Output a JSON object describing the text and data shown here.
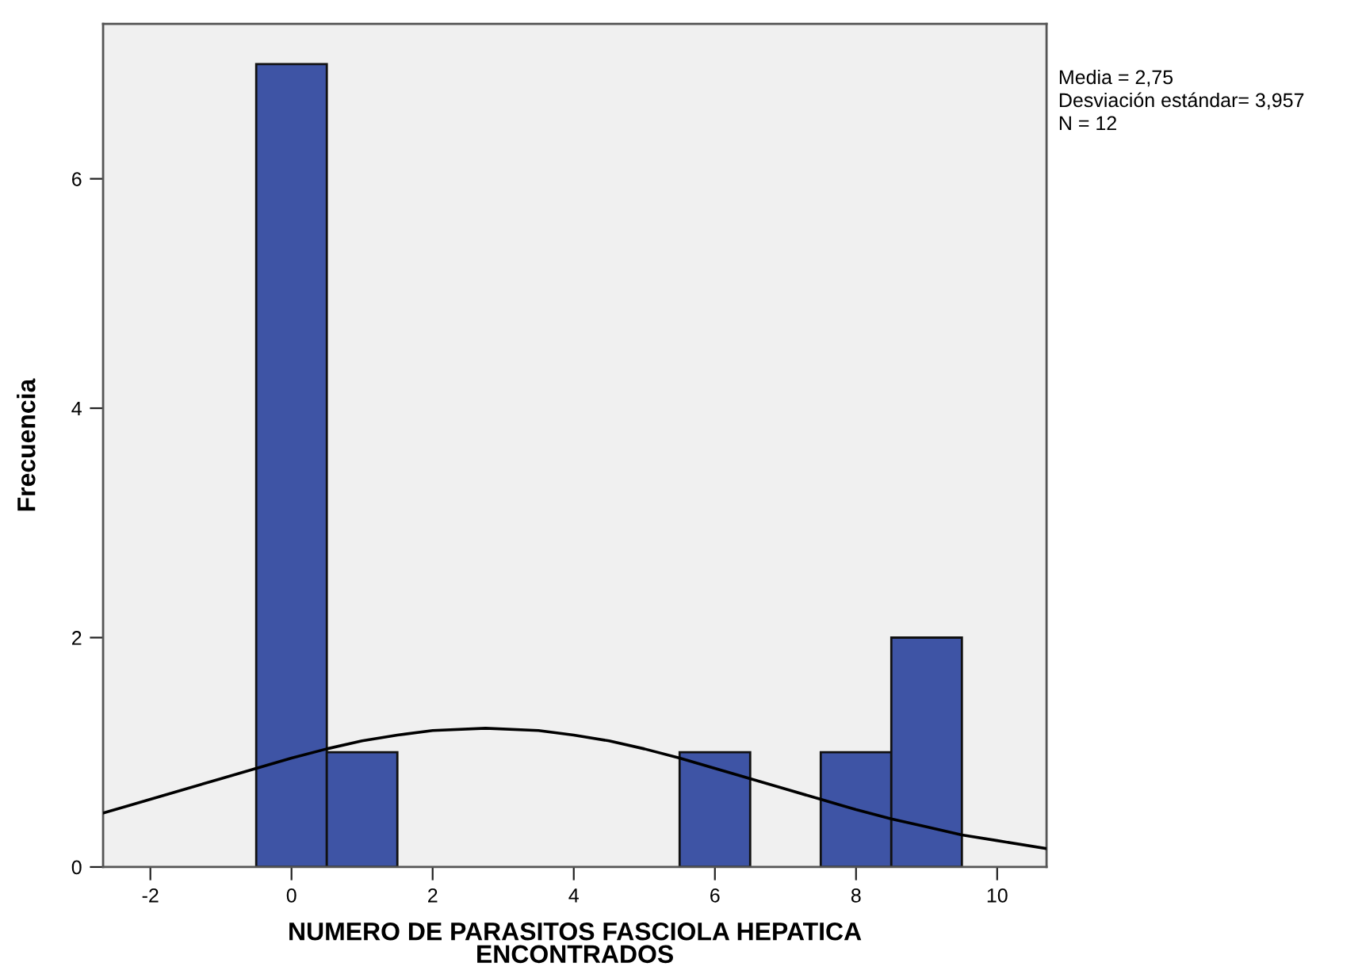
{
  "chart_data": {
    "type": "histogram",
    "xlabel": "NUMERO DE PARASITOS FASCIOLA HEPATICA\nENCONTRADOS",
    "ylabel": "Frecuencia",
    "bins": [
      -0.5,
      0.5,
      1.5,
      2.5,
      3.5,
      4.5,
      5.5,
      6.5,
      7.5,
      8.5,
      9.5
    ],
    "series": [
      {
        "color": "#3e54a5",
        "values": [
          7,
          1,
          0,
          0,
          0,
          0,
          1,
          0,
          1,
          2
        ]
      },
      {
        "type": "line",
        "color": "#000000",
        "x": [
          -2.67,
          -2,
          -1.5,
          -1,
          -0.5,
          0,
          0.5,
          1,
          1.5,
          2,
          2.75,
          3.5,
          4,
          4.5,
          5,
          5.5,
          6,
          6.5,
          7,
          7.5,
          8,
          8.5,
          9,
          9.5,
          10,
          10.7
        ],
        "values": [
          0.47,
          0.59,
          0.68,
          0.77,
          0.86,
          0.95,
          1.03,
          1.1,
          1.15,
          1.19,
          1.21,
          1.19,
          1.15,
          1.1,
          1.03,
          0.95,
          0.86,
          0.77,
          0.68,
          0.59,
          0.5,
          0.42,
          0.35,
          0.28,
          0.23,
          0.16
        ]
      }
    ],
    "xlim": [
      -2.67,
      10.7
    ],
    "ylim": [
      0,
      7.35
    ],
    "xticks": [
      -2,
      0,
      2,
      4,
      6,
      8,
      10
    ],
    "yticks": [
      0,
      2,
      4,
      6
    ],
    "grid": false,
    "legend": false,
    "annotations": [
      "Media = 2,75",
      "Desviación estándar= 3,957",
      "N = 12"
    ]
  }
}
